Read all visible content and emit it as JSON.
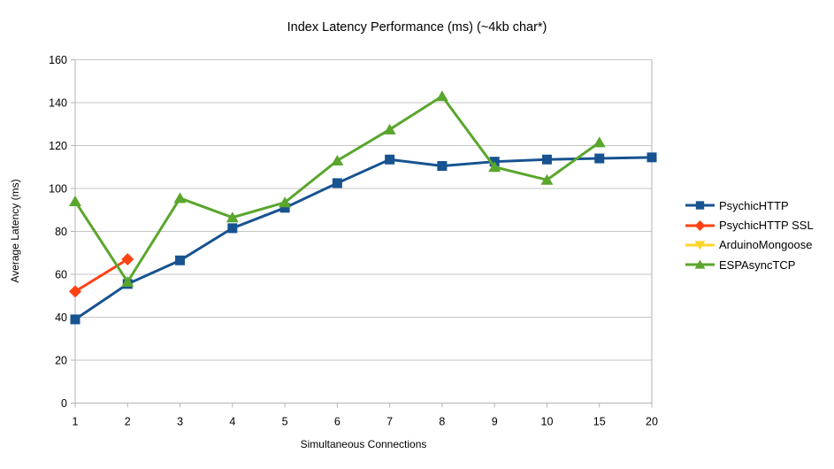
{
  "chart_data": {
    "type": "line",
    "title": "Index Latency Performance (ms) (~4kb char*)",
    "xlabel": "Simultaneous Connections",
    "ylabel": "Average Latency (ms)",
    "categories": [
      "1",
      "2",
      "3",
      "4",
      "5",
      "6",
      "7",
      "8",
      "9",
      "10",
      "15",
      "20"
    ],
    "ylim": [
      0,
      160
    ],
    "ytick_step": 20,
    "ytick_labels": [
      "0",
      "20",
      "40",
      "60",
      "80",
      "100",
      "120",
      "140",
      "160"
    ],
    "grid": "horizontal",
    "legend_position": "right",
    "series": [
      {
        "name": "PsychicHTTP",
        "color": "#175390",
        "marker": "square",
        "values": [
          39,
          55.5,
          66.5,
          81.5,
          91,
          102.5,
          113.5,
          110.5,
          112.5,
          113.5,
          114,
          114.5
        ]
      },
      {
        "name": "PsychicHTTP SSL",
        "color": "#FF4214",
        "marker": "diamond",
        "values": [
          52,
          67,
          null,
          null,
          null,
          null,
          null,
          null,
          null,
          null,
          null,
          null
        ]
      },
      {
        "name": "ArduinoMongoose",
        "color": "#FFD428",
        "marker": "triangle-down",
        "values": [
          null,
          null,
          null,
          null,
          null,
          null,
          null,
          null,
          null,
          null,
          null,
          null
        ]
      },
      {
        "name": "ESPAsyncTCP",
        "color": "#5AA62D",
        "marker": "triangle-up",
        "values": [
          94,
          56.5,
          95.5,
          86.5,
          93.5,
          113,
          127.5,
          143,
          110,
          104,
          121.5,
          null
        ]
      }
    ],
    "grid_color": "#C6C6C6",
    "axis_color": "#B3B3B3",
    "text_color": "#000000",
    "background_color": "#FFFFFF"
  }
}
